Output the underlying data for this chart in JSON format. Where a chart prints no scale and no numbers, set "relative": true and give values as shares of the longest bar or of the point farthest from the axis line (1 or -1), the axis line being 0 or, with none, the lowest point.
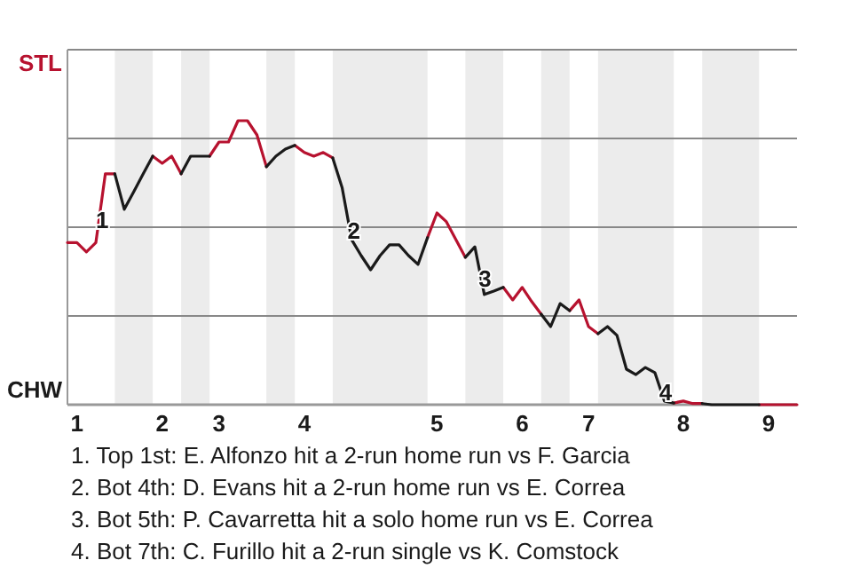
{
  "chart_data": {
    "type": "line",
    "relative": true,
    "categories": [
      null,
      "1",
      null,
      null,
      null,
      null,
      null,
      null,
      null,
      null,
      "2",
      null,
      null,
      null,
      null,
      null,
      "3",
      null,
      null,
      null,
      null,
      null,
      null,
      null,
      null,
      "4",
      null,
      null,
      null,
      null,
      null,
      null,
      null,
      null,
      null,
      null,
      null,
      null,
      null,
      "5",
      null,
      null,
      null,
      null,
      null,
      null,
      null,
      null,
      "6",
      null,
      null,
      null,
      null,
      null,
      null,
      "7",
      null,
      null,
      null,
      null,
      null,
      null,
      null,
      null,
      null,
      "8",
      null,
      null,
      null,
      null,
      null,
      null,
      null,
      null,
      "9",
      null,
      null,
      null
    ],
    "series": [
      {
        "color": "#b7122f",
        "values": [
          0.571,
          0.571,
          0.538,
          0.571,
          0.813,
          0.813,
          null,
          null,
          null,
          0.875,
          0.85,
          0.875,
          0.813,
          null,
          null,
          0.875,
          0.925,
          0.925,
          1,
          1,
          0.95,
          0.838,
          null,
          null,
          0.913,
          0.888,
          0.875,
          0.888,
          0.869,
          null,
          null,
          null,
          null,
          null,
          null,
          null,
          null,
          null,
          0.588,
          0.675,
          0.644,
          0.581,
          0.519,
          null,
          null,
          null,
          0.413,
          0.369,
          0.413,
          0.363,
          0.319,
          null,
          null,
          0.331,
          0.369,
          0.275,
          0.25,
          null,
          null,
          null,
          null,
          null,
          null,
          null,
          0.006,
          0.013,
          0.004,
          0.004,
          null,
          null,
          null,
          null,
          null,
          0,
          0,
          0,
          0,
          0
        ]
      },
      {
        "color": "#1a1a1a",
        "values": [
          null,
          null,
          null,
          null,
          null,
          0.813,
          0.688,
          0.75,
          0.813,
          0.875,
          null,
          null,
          0.813,
          0.875,
          0.875,
          0.875,
          null,
          null,
          null,
          null,
          null,
          0.838,
          0.875,
          0.9,
          0.913,
          null,
          null,
          null,
          0.869,
          0.763,
          0.581,
          0.525,
          0.475,
          0.525,
          0.563,
          0.563,
          0.525,
          0.494,
          0.588,
          null,
          null,
          null,
          0.519,
          0.556,
          0.388,
          0.4,
          0.413,
          null,
          null,
          null,
          0.319,
          0.275,
          0.356,
          0.331,
          null,
          null,
          0.25,
          0.275,
          0.244,
          0.125,
          0.106,
          0.131,
          0.113,
          0.013,
          0.006,
          null,
          null,
          0.004,
          0,
          0,
          0,
          0,
          0,
          0,
          null,
          null,
          null,
          null
        ]
      }
    ],
    "grid": "y",
    "annotations": [
      "STL",
      "CHW",
      {
        "text": "1",
        "y": 0.644
      },
      {
        "text": "2",
        "y": 0.606
      },
      {
        "text": "3",
        "y": 0.438
      },
      {
        "text": "4",
        "y": 0.038
      },
      "1. Top 1st: E. Alfonzo hit a 2-run home run vs F. Garcia",
      "2. Bot 4th: D. Evans hit a 2-run home run vs E. Correa",
      "3. Bot 5th: P. Cavarretta hit a solo home run vs E. Correa",
      "4. Bot 7th: C. Furillo hit a 2-run single vs K. Comstock"
    ],
    "marker": "none",
    "line_style": "solid"
  }
}
